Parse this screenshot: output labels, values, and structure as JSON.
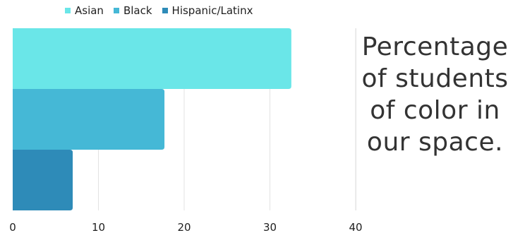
{
  "caption": "Percentage of students of color in our space.",
  "colors": {
    "asian": "#6ae6e8",
    "black": "#45b8d6",
    "hispanic": "#2e8bb8",
    "grid": "#e3e3e3",
    "text": "#1f1f1f"
  },
  "chart_data": {
    "type": "bar",
    "orientation": "horizontal",
    "legend_position": "top",
    "grid": true,
    "xlim": [
      0,
      40
    ],
    "x_ticks": [
      "0",
      "10",
      "20",
      "30",
      "40"
    ],
    "series": [
      {
        "name": "Asian",
        "value": 32.5,
        "color": "#6ae6e8"
      },
      {
        "name": "Black",
        "value": 17.7,
        "color": "#45b8d6"
      },
      {
        "name": "Hispanic/Latinx",
        "value": 7.0,
        "color": "#2e8bb8"
      }
    ]
  }
}
